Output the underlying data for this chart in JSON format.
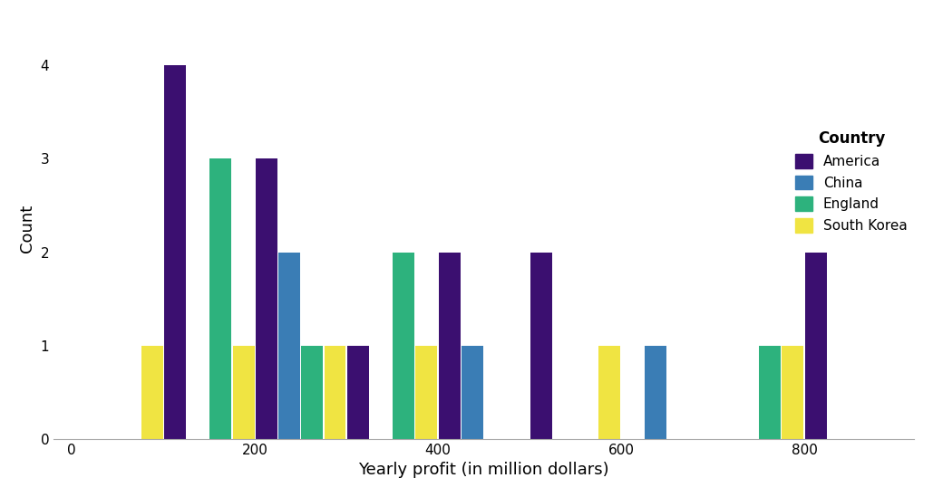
{
  "countries": [
    "America",
    "China",
    "England",
    "South Korea"
  ],
  "colors": [
    "#3B0F70",
    "#3A7DB5",
    "#2DB27D",
    "#F0E442"
  ],
  "bin_edges": [
    0,
    100,
    200,
    300,
    400,
    500,
    600,
    700,
    800,
    900
  ],
  "bin_width": 100,
  "counts": {
    "America": [
      0,
      4,
      3,
      1,
      2,
      2,
      0,
      0,
      2
    ],
    "China": [
      0,
      0,
      2,
      0,
      1,
      0,
      1,
      0,
      0
    ],
    "England": [
      0,
      3,
      1,
      2,
      0,
      0,
      0,
      1,
      0
    ],
    "South Korea": [
      1,
      1,
      1,
      1,
      0,
      1,
      0,
      1,
      0
    ]
  },
  "xlabel": "Yearly profit (in million dollars)",
  "ylabel": "Count",
  "legend_title": "Country",
  "ylim": [
    0,
    4.5
  ],
  "xticks": [
    0,
    200,
    400,
    600,
    800
  ],
  "yticks": [
    0,
    1,
    2,
    3,
    4
  ],
  "figsize": [
    10.29,
    5.49
  ],
  "dpi": 100
}
